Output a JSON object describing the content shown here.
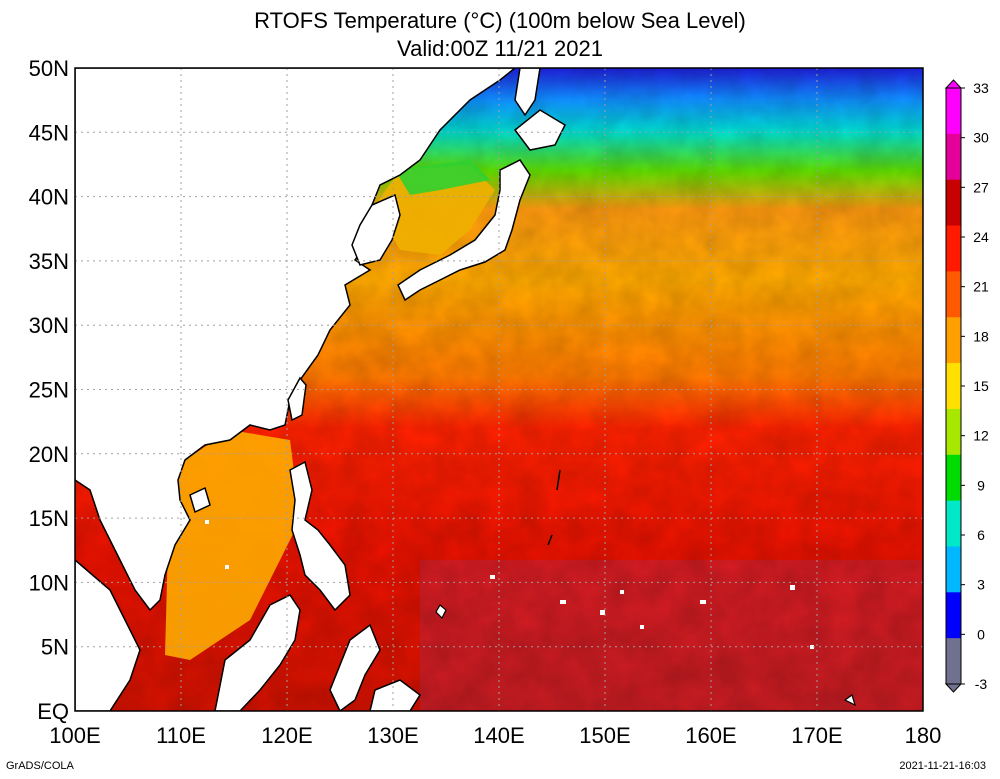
{
  "title": {
    "line1": "RTOFS Temperature (°C) (100m below Sea Level)",
    "line2": "Valid:00Z 11/21 2021"
  },
  "map": {
    "lat_ticks": [
      {
        "value": 50,
        "label": "50N"
      },
      {
        "value": 45,
        "label": "45N"
      },
      {
        "value": 40,
        "label": "40N"
      },
      {
        "value": 35,
        "label": "35N"
      },
      {
        "value": 30,
        "label": "30N"
      },
      {
        "value": 25,
        "label": "25N"
      },
      {
        "value": 20,
        "label": "20N"
      },
      {
        "value": 15,
        "label": "15N"
      },
      {
        "value": 10,
        "label": "10N"
      },
      {
        "value": 5,
        "label": "5N"
      },
      {
        "value": 0,
        "label": "EQ"
      }
    ],
    "lon_ticks": [
      {
        "value": 100,
        "label": "100E"
      },
      {
        "value": 110,
        "label": "110E"
      },
      {
        "value": 120,
        "label": "120E"
      },
      {
        "value": 130,
        "label": "130E"
      },
      {
        "value": 140,
        "label": "140E"
      },
      {
        "value": 150,
        "label": "150E"
      },
      {
        "value": 160,
        "label": "160E"
      },
      {
        "value": 170,
        "label": "170E"
      },
      {
        "value": 180,
        "label": "180"
      }
    ],
    "lon_range": [
      100,
      180
    ],
    "lat_range": [
      0,
      50
    ]
  },
  "colorbar": {
    "ticks": [
      "33",
      "30",
      "27",
      "24",
      "21",
      "18",
      "15",
      "12",
      "9",
      "6",
      "3",
      "0",
      "-3"
    ],
    "colors": [
      "#ff00ff",
      "#e6009a",
      "#c80000",
      "#ff1a00",
      "#ff5a00",
      "#ffa000",
      "#ffe000",
      "#a8e800",
      "#00dc00",
      "#00e8c8",
      "#00b8ff",
      "#0000ff",
      "#707090"
    ]
  },
  "footer": {
    "left": "GrADS/COLA",
    "right": "2021-11-21-16:03"
  }
}
